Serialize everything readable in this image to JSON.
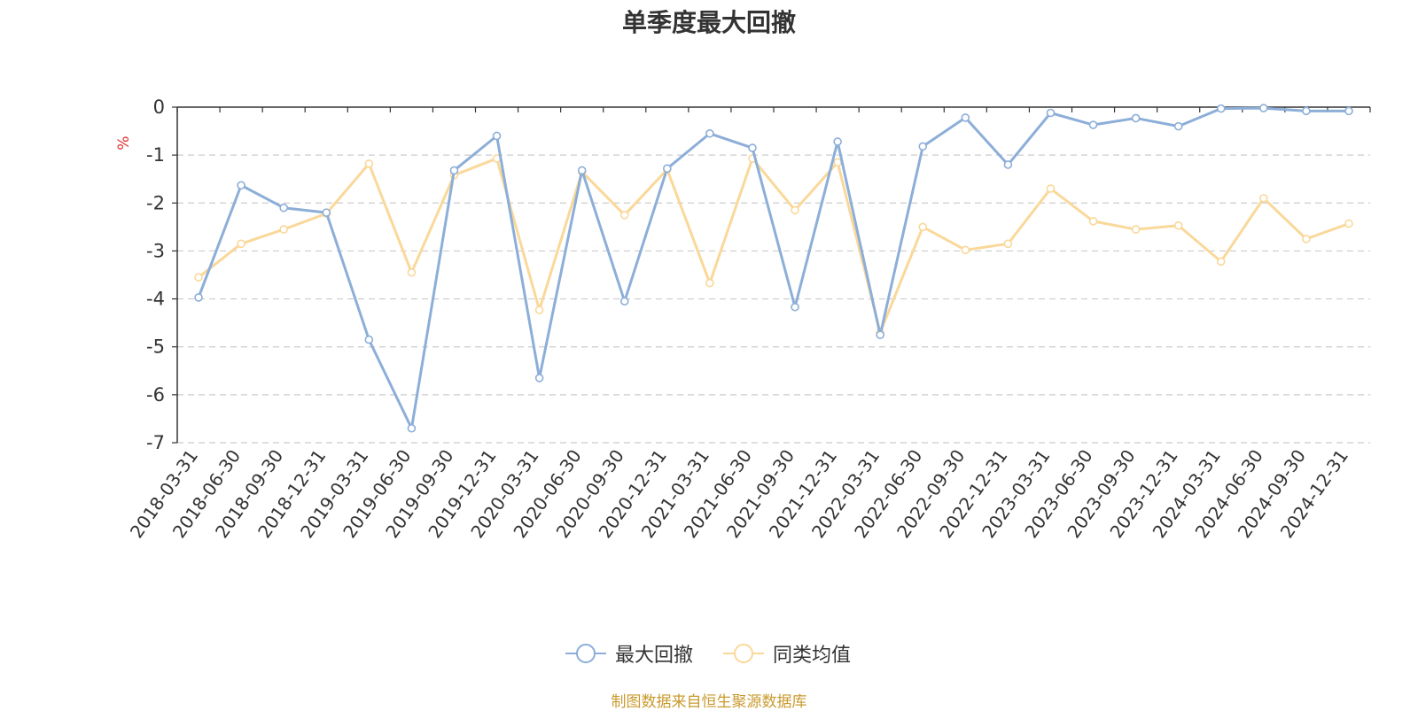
{
  "chart_data": {
    "type": "line",
    "title": "单季度最大回撤",
    "ylabel": "%",
    "ylim": [
      -7,
      0
    ],
    "yticks": [
      0,
      -1,
      -2,
      -3,
      -4,
      -5,
      -6,
      -7
    ],
    "grid": true,
    "legend_placement": "bottom-center",
    "categories": [
      "2018-03-31",
      "2018-06-30",
      "2018-09-30",
      "2018-12-31",
      "2019-03-31",
      "2019-06-30",
      "2019-09-30",
      "2019-12-31",
      "2020-03-31",
      "2020-06-30",
      "2020-09-30",
      "2020-12-31",
      "2021-03-31",
      "2021-06-30",
      "2021-09-30",
      "2021-12-31",
      "2022-03-31",
      "2022-06-30",
      "2022-09-30",
      "2022-12-31",
      "2023-03-31",
      "2023-06-30",
      "2023-09-30",
      "2023-12-31",
      "2024-03-31",
      "2024-06-30",
      "2024-09-30",
      "2024-12-31"
    ],
    "series": [
      {
        "name": "最大回撤",
        "color": "#8caed8",
        "values": [
          -3.97,
          -1.63,
          -2.1,
          -2.2,
          -4.85,
          -6.7,
          -1.32,
          -0.6,
          -5.65,
          -1.32,
          -4.05,
          -1.28,
          -0.55,
          -0.85,
          -4.17,
          -0.72,
          -4.75,
          -0.82,
          -0.22,
          -1.2,
          -0.12,
          -0.37,
          -0.23,
          -0.4,
          -0.03,
          -0.02,
          -0.08,
          -0.08
        ]
      },
      {
        "name": "同类均值",
        "color": "#fad89a",
        "values": [
          -3.55,
          -2.85,
          -2.55,
          -2.22,
          -1.18,
          -3.45,
          -1.42,
          -1.07,
          -4.23,
          -1.35,
          -2.25,
          -1.3,
          -3.67,
          -1.07,
          -2.15,
          -1.15,
          -4.7,
          -2.5,
          -2.98,
          -2.85,
          -1.7,
          -2.38,
          -2.55,
          -2.47,
          -3.22,
          -1.9,
          -2.75,
          -2.43
        ]
      }
    ]
  },
  "legend": {
    "items": [
      {
        "label": "最大回撤"
      },
      {
        "label": "同类均值"
      }
    ]
  },
  "source_note": "制图数据来自恒生聚源数据库",
  "colors": {
    "axis": "#333333",
    "grid": "#cccccc",
    "ylabel": "#e03030",
    "source": "#c99a2e"
  }
}
